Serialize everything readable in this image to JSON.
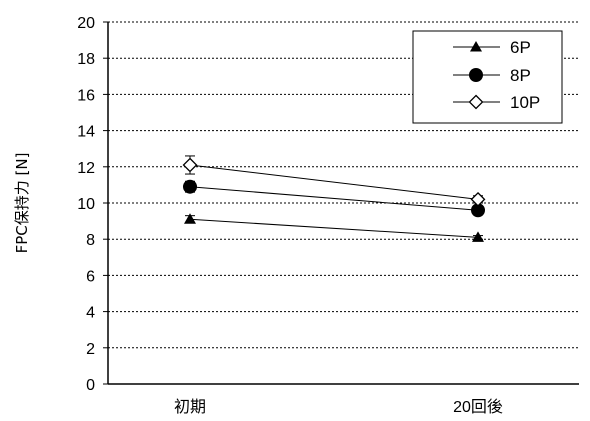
{
  "chart_data": {
    "type": "line",
    "categories": [
      "初期",
      "20回後"
    ],
    "ylabel": "FPC保持力 [N]",
    "xlabel": "",
    "ylim": [
      0,
      20
    ],
    "yticks": [
      0,
      2,
      4,
      6,
      8,
      10,
      12,
      14,
      16,
      18,
      20
    ],
    "grid": "horizontal dashed",
    "legend_position": "top-right",
    "series": [
      {
        "name": "6P",
        "marker": "triangle",
        "values": [
          9.1,
          8.1
        ],
        "error": [
          0.2,
          0.1
        ]
      },
      {
        "name": "8P",
        "marker": "circle",
        "values": [
          10.9,
          9.6
        ],
        "error": [
          0.3,
          0.2
        ]
      },
      {
        "name": "10P",
        "marker": "diamond-open",
        "values": [
          12.1,
          10.2
        ],
        "error": [
          0.5,
          0.2
        ]
      }
    ],
    "colors": {
      "line": "#000000",
      "grid": "#000000",
      "background": "#ffffff"
    }
  }
}
